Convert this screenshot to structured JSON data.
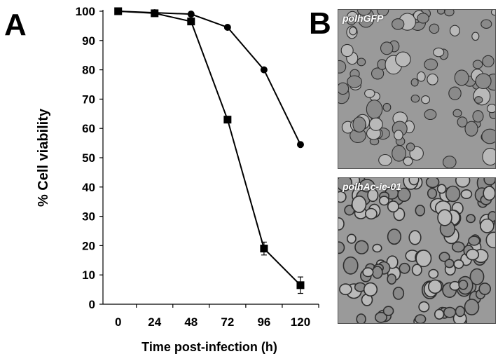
{
  "panel_a_letter": "A",
  "panel_b_letter": "B",
  "micrographs": [
    {
      "label": "polhGFP"
    },
    {
      "label": "polhAc-ie-01"
    }
  ],
  "chart_data": {
    "type": "line",
    "xlabel": "Time post-infection (h)",
    "ylabel": "% Cell viability",
    "x_ticks": [
      0,
      24,
      48,
      72,
      96,
      120
    ],
    "y_ticks": [
      0,
      10,
      20,
      30,
      40,
      50,
      60,
      70,
      80,
      90,
      100
    ],
    "xlim": [
      -10,
      132
    ],
    "ylim": [
      0,
      100
    ],
    "grid": false,
    "legend": "none",
    "series": [
      {
        "marker": "circle",
        "x": [
          0,
          24,
          48,
          72,
          96,
          120
        ],
        "y": [
          100,
          99.5,
          99,
          94.5,
          80,
          54.5
        ],
        "err": [
          0,
          0,
          0,
          0,
          0,
          0
        ]
      },
      {
        "marker": "square",
        "x": [
          0,
          24,
          48,
          72,
          96,
          120
        ],
        "y": [
          100,
          99.3,
          96.5,
          63,
          19,
          6.5
        ],
        "err": [
          0,
          0,
          0,
          0,
          2.2,
          2.8
        ]
      }
    ]
  }
}
